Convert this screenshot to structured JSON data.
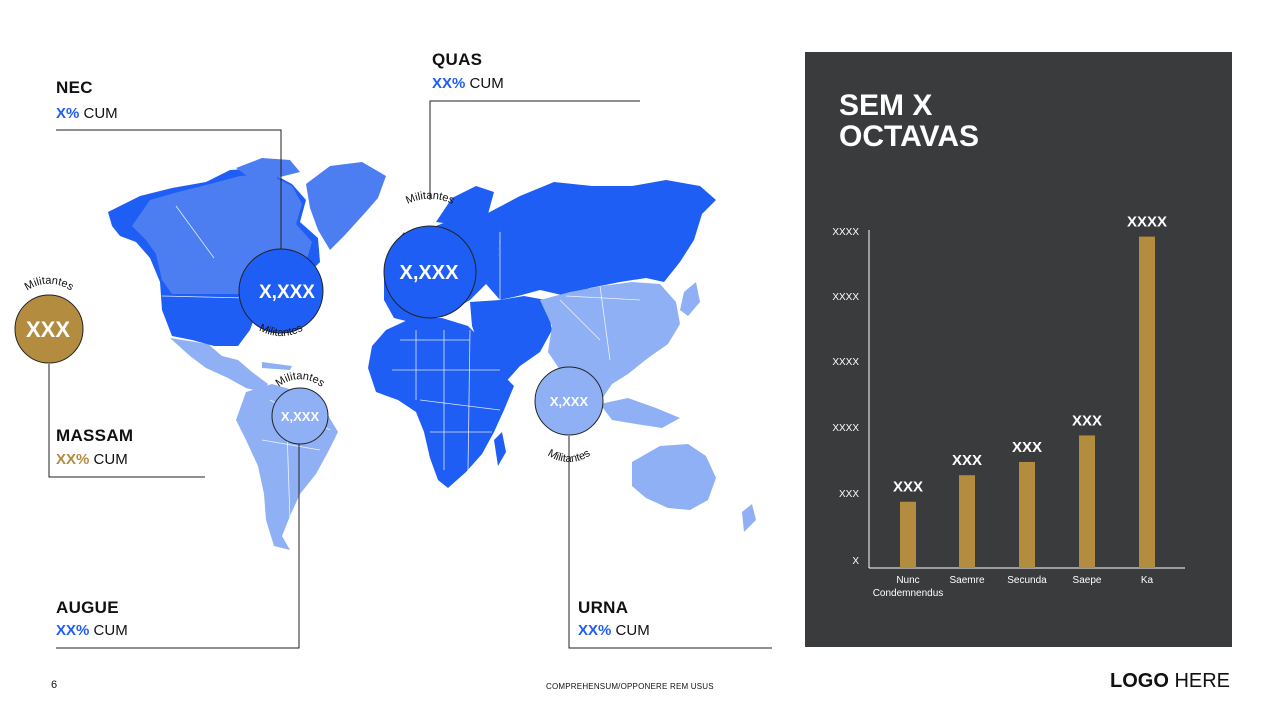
{
  "page_number": "6",
  "footer_text": "COMPREHENSUM/OPPONERE REM USUS",
  "logo": {
    "bold": "LOGO",
    "normal": "HERE"
  },
  "colors": {
    "dark_blue": "#1f5ef5",
    "mid_blue": "#4c7ef2",
    "light_blue": "#8fb0f4",
    "gold": "#b48c3f",
    "panel_bg": "#3a3b3c"
  },
  "regions": {
    "nec": {
      "title": "NEC",
      "pct": "X%",
      "unit": "CUM"
    },
    "quas": {
      "title": "QUAS",
      "pct": "XX%",
      "unit": "CUM"
    },
    "massam": {
      "title": "MASSAM",
      "pct": "XX%",
      "unit": "CUM"
    },
    "augue": {
      "title": "AUGUE",
      "pct": "XX%",
      "unit": "CUM"
    },
    "urna": {
      "title": "URNA",
      "pct": "XX%",
      "unit": "CUM"
    }
  },
  "bubbles": {
    "north_america": {
      "value": "X,XXX",
      "caption": "Militantes"
    },
    "europe": {
      "value": "X,XXX",
      "caption": "Militantes"
    },
    "gold": {
      "value": "XXX",
      "caption": "Militantes"
    },
    "south_america": {
      "value": "X,XXX",
      "caption": "Militantes"
    },
    "asia": {
      "value": "X,XXX",
      "caption": "Militantes"
    }
  },
  "panel": {
    "title_line1": "SEM X",
    "title_line2": "OCTAVAS"
  },
  "chart_data": {
    "type": "bar",
    "title": "SEM X OCTAVAS",
    "categories": [
      "Nunc Condemnendus",
      "Saemre",
      "Secunda",
      "Saepe",
      "Ka"
    ],
    "category_lines": [
      [
        "Nunc",
        "Condemnendus"
      ],
      [
        "Saemre"
      ],
      [
        "Secunda"
      ],
      [
        "Saepe"
      ],
      [
        "Ka"
      ]
    ],
    "values": [
      1.0,
      1.4,
      1.6,
      2.0,
      5.0
    ],
    "data_labels": [
      "XXX",
      "XXX",
      "XXX",
      "XXX",
      "XXXX"
    ],
    "y_tick_labels": [
      "X",
      "XXX",
      "XXXX",
      "XXXX",
      "XXXX",
      "XXXX"
    ],
    "ylim": [
      0,
      5.1
    ],
    "bar_color": "#b48c3f",
    "grid": false,
    "legend": "none"
  }
}
